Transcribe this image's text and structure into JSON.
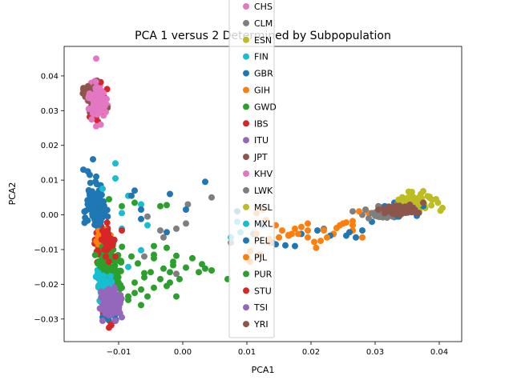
{
  "chart_data": {
    "type": "scatter",
    "title": "PCA 1 versus 2 Determined by Subpopulation",
    "xlabel": "PCA1",
    "ylabel": "PCA2",
    "xlim": [
      -0.0185,
      0.0435
    ],
    "ylim": [
      -0.0365,
      0.0485
    ],
    "xticks": [
      -0.01,
      0.0,
      0.01,
      0.02,
      0.03,
      0.04
    ],
    "xtick_labels": [
      "−0.01",
      "0.00",
      "0.01",
      "0.02",
      "0.03",
      "0.04"
    ],
    "yticks": [
      -0.03,
      -0.02,
      -0.01,
      0.0,
      0.01,
      0.02,
      0.03,
      0.04
    ],
    "ytick_labels": [
      "−0.03",
      "−0.02",
      "−0.01",
      "0.00",
      "0.01",
      "0.02",
      "0.03",
      "0.04"
    ],
    "grid": false,
    "legend_position": "upper-center (overlapping title)",
    "series": [
      {
        "name": "CHS",
        "color": "#e377c2",
        "clusters": [
          [
            -0.0135,
            0.0335,
            0.0012,
            0.0038,
            90
          ]
        ],
        "points": []
      },
      {
        "name": "CLM",
        "color": "#7f7f7f",
        "clusters": [
          [
            -0.012,
            -0.018,
            0.001,
            0.006,
            60
          ],
          [
            0.031,
            0.0005,
            0.0015,
            0.0012,
            50
          ]
        ],
        "points": [
          [
            -0.0055,
            -0.0005
          ],
          [
            -0.003,
            -0.0065
          ],
          [
            -0.001,
            -0.004
          ],
          [
            0.0008,
            0.003
          ],
          [
            0.0005,
            -0.0025
          ],
          [
            -0.006,
            -0.012
          ],
          [
            0.0045,
            0.005
          ],
          [
            0.0075,
            -0.008
          ],
          [
            0.011,
            -0.0055
          ],
          [
            0.014,
            -0.008
          ],
          [
            -0.0035,
            -0.0045
          ],
          [
            -0.001,
            -0.017
          ],
          [
            0.022,
            -0.004
          ],
          [
            0.028,
            0.0
          ],
          [
            0.0265,
            0.001
          ]
        ]
      },
      {
        "name": "ESN",
        "color": "#bcbd22",
        "clusters": [
          [
            0.036,
            0.003,
            0.0025,
            0.0018,
            25
          ]
        ],
        "points": [
          [
            0.0395,
            0.0045
          ],
          [
            0.0375,
            0.0068
          ],
          [
            0.0405,
            0.002
          ]
        ]
      },
      {
        "name": "FIN",
        "color": "#17becf",
        "clusters": [
          [
            -0.0125,
            -0.018,
            0.0012,
            0.004,
            40
          ]
        ],
        "points": [
          [
            -0.0105,
            0.0148
          ],
          [
            -0.0105,
            0.0105
          ],
          [
            -0.0085,
            0.0055
          ],
          [
            -0.0065,
            0.003
          ],
          [
            -0.0055,
            -0.003
          ],
          [
            -0.011,
            -0.008
          ],
          [
            -0.0115,
            -0.0125
          ],
          [
            -0.0095,
            0.0005
          ],
          [
            -0.0065,
            -0.0102
          ]
        ]
      },
      {
        "name": "GBR",
        "color": "#1f77b4",
        "clusters": [
          [
            -0.0138,
            0.003,
            0.0015,
            0.005,
            60
          ],
          [
            -0.0115,
            -0.028,
            0.001,
            0.002,
            20
          ]
        ],
        "points": [
          [
            -0.0155,
            0.013
          ],
          [
            -0.0148,
            0.0125
          ],
          [
            -0.0145,
            0.0115
          ],
          [
            -0.014,
            0.016
          ],
          [
            -0.0135,
            0.011
          ],
          [
            -0.0065,
            0.0015
          ],
          [
            -0.002,
            0.006
          ],
          [
            0.0005,
            0.0015
          ],
          [
            -0.0075,
            0.007
          ],
          [
            0.0035,
            0.0095
          ],
          [
            0.0085,
            0.001
          ],
          [
            0.0145,
            -0.0085
          ],
          [
            0.0175,
            -0.009
          ],
          [
            0.0235,
            -0.0055
          ],
          [
            0.027,
            -0.0065
          ],
          [
            0.0295,
            -0.002
          ],
          [
            0.033,
            0.0035
          ],
          [
            0.0365,
            -0.0003
          ],
          [
            0.0375,
            0.0025
          ],
          [
            -0.0128,
            0.0085
          ],
          [
            -0.008,
            0.0055
          ]
        ]
      },
      {
        "name": "GIH",
        "color": "#ff7f0e",
        "clusters": [
          [
            -0.0125,
            -0.0085,
            0.001,
            0.0018,
            20
          ]
        ],
        "points": [
          [
            0.0115,
            0.0005
          ],
          [
            0.0125,
            0.0015
          ],
          [
            0.0155,
            -0.0045
          ],
          [
            0.017,
            -0.0055
          ],
          [
            0.0185,
            -0.0035
          ],
          [
            0.0195,
            -0.0065
          ],
          [
            0.0215,
            -0.0075
          ],
          [
            0.022,
            -0.0045
          ],
          [
            0.0235,
            -0.0055
          ],
          [
            0.025,
            -0.0025
          ],
          [
            0.0265,
            -0.0018
          ],
          [
            0.0275,
            0.001
          ],
          [
            0.028,
            -0.0065
          ],
          [
            0.0105,
            -0.0135
          ],
          [
            0.0135,
            -0.008
          ],
          [
            0.0165,
            -0.006
          ],
          [
            0.0208,
            -0.0095
          ],
          [
            0.0245,
            -0.003
          ],
          [
            0.0265,
            -0.0045
          ],
          [
            0.029,
            0.0005
          ],
          [
            0.013,
            -0.0015
          ],
          [
            0.0145,
            -0.003
          ]
        ]
      },
      {
        "name": "GWD",
        "color": "#2ca02c",
        "clusters": [
          [
            -0.011,
            -0.0175,
            0.0015,
            0.003,
            40
          ]
        ],
        "points": [
          [
            -0.0045,
            -0.0125
          ],
          [
            -0.003,
            -0.0155
          ],
          [
            -0.0015,
            -0.0145
          ],
          [
            -0.002,
            -0.0195
          ],
          [
            0.0005,
            -0.0152
          ],
          [
            0.0045,
            -0.016
          ],
          [
            -0.006,
            -0.018
          ],
          [
            -0.0045,
            -0.021
          ],
          [
            -0.0065,
            -0.026
          ],
          [
            -0.0085,
            -0.0235
          ],
          [
            -0.0095,
            -0.021
          ],
          [
            -0.007,
            -0.014
          ],
          [
            -0.008,
            -0.012
          ],
          [
            -0.0025,
            -0.0095
          ],
          [
            -0.001,
            -0.0118
          ],
          [
            0.0015,
            -0.0125
          ],
          [
            0.003,
            -0.0142
          ],
          [
            -0.005,
            -0.0165
          ],
          [
            -0.0035,
            -0.0185
          ],
          [
            -0.001,
            -0.0235
          ],
          [
            -0.0075,
            -0.0195
          ],
          [
            -0.0025,
            0.0028
          ],
          [
            -0.0075,
            0.0035
          ],
          [
            -0.006,
            -0.0168
          ],
          [
            -0.0005,
            -0.0185
          ],
          [
            0.007,
            -0.0185
          ],
          [
            -0.002,
            -0.0165
          ],
          [
            -0.0045,
            -0.009
          ]
        ]
      },
      {
        "name": "IBS",
        "color": "#d62728",
        "clusters": [
          [
            -0.0125,
            -0.0085,
            0.001,
            0.0045,
            90
          ],
          [
            -0.0118,
            -0.0275,
            0.0008,
            0.0025,
            15
          ]
        ],
        "points": [
          [
            -0.0145,
            0.0355
          ],
          [
            -0.0142,
            0.0312
          ],
          [
            -0.0138,
            0.0295
          ],
          [
            -0.0135,
            0.0275
          ],
          [
            -0.0128,
            0.0382
          ],
          [
            -0.0122,
            0.0338
          ],
          [
            -0.0118,
            0.0362
          ],
          [
            -0.0132,
            0.0268
          ],
          [
            -0.0145,
            0.0282
          ],
          [
            -0.0124,
            0.0322
          ],
          [
            -0.0126,
            0.0298
          ],
          [
            -0.0112,
            -0.0315
          ],
          [
            -0.0115,
            -0.0325
          ],
          [
            -0.0105,
            -0.0305
          ]
        ]
      },
      {
        "name": "ITU",
        "color": "#9467bd",
        "clusters": [
          [
            -0.011,
            -0.0245,
            0.0012,
            0.0035,
            110
          ]
        ],
        "points": []
      },
      {
        "name": "JPT",
        "color": "#8c564b",
        "clusters": [
          [
            -0.0138,
            0.0335,
            0.0012,
            0.0035,
            60
          ],
          [
            0.034,
            0.0015,
            0.0022,
            0.0012,
            60
          ]
        ],
        "points": [
          [
            -0.0155,
            0.0365
          ],
          [
            -0.0152,
            0.034
          ],
          [
            -0.0148,
            0.037
          ]
        ]
      },
      {
        "name": "KHV",
        "color": "#e377c2",
        "clusters": [
          [
            -0.0132,
            0.0325,
            0.0012,
            0.0035,
            80
          ]
        ],
        "points": [
          [
            -0.0135,
            0.045
          ],
          [
            -0.0135,
            0.0255
          ],
          [
            -0.0128,
            0.026
          ],
          [
            -0.0142,
            0.0275
          ]
        ]
      },
      {
        "name": "LWK",
        "color": "#7f7f7f",
        "clusters": [
          [
            0.032,
            0.0005,
            0.0018,
            0.0012,
            50
          ]
        ],
        "points": [
          [
            0.0295,
            0.0005
          ],
          [
            0.0305,
            0.0025
          ],
          [
            0.0335,
            0.0035
          ],
          [
            0.0355,
            0.0045
          ],
          [
            0.0365,
            0.0035
          ],
          [
            0.029,
            -0.001
          ],
          [
            0.0285,
            0.0015
          ]
        ]
      },
      {
        "name": "MSL",
        "color": "#bcbd22",
        "clusters": [
          [
            0.0365,
            0.0045,
            0.002,
            0.0015,
            30
          ]
        ],
        "points": [
          [
            0.0398,
            0.0035
          ],
          [
            0.0402,
            0.0012
          ],
          [
            0.0385,
            0.0052
          ]
        ]
      },
      {
        "name": "MXL",
        "color": "#17becf",
        "clusters": [
          [
            -0.012,
            -0.022,
            0.0012,
            0.0045,
            40
          ]
        ],
        "points": [
          [
            -0.0125,
            0.0075
          ],
          [
            -0.0095,
            -0.004
          ],
          [
            0.0085,
            -0.002
          ],
          [
            0.009,
            -0.005
          ],
          [
            0.0075,
            -0.0065
          ],
          [
            -0.0085,
            -0.015
          ]
        ]
      },
      {
        "name": "PEL",
        "color": "#1f77b4",
        "clusters": [
          [
            -0.0132,
            0.001,
            0.0012,
            0.0045,
            40
          ]
        ],
        "points": [
          [
            -0.0065,
            -0.0012
          ],
          [
            -0.0025,
            -0.005
          ],
          [
            0.0125,
            -0.003
          ],
          [
            0.016,
            -0.0088
          ],
          [
            0.0185,
            -0.0055
          ],
          [
            0.021,
            -0.0045
          ],
          [
            0.023,
            -0.006
          ],
          [
            0.0255,
            -0.006
          ],
          [
            0.026,
            -0.005
          ],
          [
            0.028,
            -0.0045
          ],
          [
            0.0315,
            0.0025
          ],
          [
            0.0335,
            -0.0005
          ],
          [
            -0.0125,
            -0.0295
          ]
        ]
      },
      {
        "name": "PJL",
        "color": "#ff7f0e",
        "clusters": [
          [
            -0.0125,
            -0.0065,
            0.001,
            0.0025,
            30
          ]
        ],
        "points": [
          [
            0.0115,
            -0.0055
          ],
          [
            0.0135,
            -0.007
          ],
          [
            0.015,
            -0.0065
          ],
          [
            0.0165,
            -0.0058
          ],
          [
            0.018,
            -0.0055
          ],
          [
            0.0195,
            -0.0045
          ],
          [
            0.0205,
            -0.0078
          ],
          [
            0.0225,
            -0.0065
          ],
          [
            0.024,
            -0.0038
          ],
          [
            0.0255,
            -0.0022
          ],
          [
            0.0265,
            -0.003
          ],
          [
            0.0195,
            -0.0025
          ],
          [
            0.0175,
            -0.004
          ],
          [
            0.0105,
            -0.0105
          ],
          [
            0.012,
            -0.0115
          ]
        ]
      },
      {
        "name": "PUR",
        "color": "#2ca02c",
        "clusters": [
          [
            -0.0115,
            -0.013,
            0.0015,
            0.0045,
            50
          ]
        ],
        "points": [
          [
            -0.0115,
            0.0045
          ],
          [
            -0.0095,
            0.0025
          ],
          [
            -0.0035,
            0.0025
          ],
          [
            -0.0045,
            -0.0115
          ],
          [
            -0.0015,
            -0.0135
          ],
          [
            -0.0025,
            -0.0205
          ],
          [
            -0.0065,
            -0.0215
          ],
          [
            -0.0055,
            -0.0235
          ],
          [
            0.0025,
            -0.0165
          ],
          [
            0.0035,
            -0.0155
          ],
          [
            -0.0075,
            -0.0225
          ],
          [
            -0.0085,
            -0.0245
          ]
        ]
      },
      {
        "name": "STU",
        "color": "#d62728",
        "clusters": [
          [
            -0.0118,
            -0.0075,
            0.001,
            0.003,
            40
          ]
        ],
        "points": [
          [
            -0.0095,
            -0.0045
          ],
          [
            -0.0105,
            -0.012
          ],
          [
            -0.0115,
            -0.0135
          ]
        ]
      },
      {
        "name": "TSI",
        "color": "#9467bd",
        "clusters": [
          [
            -0.0112,
            -0.025,
            0.0012,
            0.003,
            110
          ]
        ],
        "points": [
          [
            -0.0105,
            -0.0305
          ],
          [
            -0.0095,
            -0.0295
          ],
          [
            -0.0125,
            -0.0305
          ]
        ]
      },
      {
        "name": "YRI",
        "color": "#8c564b",
        "clusters": [
          [
            0.034,
            0.0015,
            0.002,
            0.0012,
            60
          ]
        ],
        "points": [
          [
            0.0305,
            0.0015
          ],
          [
            0.0375,
            0.0035
          ],
          [
            0.0365,
            0.0005
          ],
          [
            0.0315,
            0.0005
          ]
        ]
      }
    ]
  }
}
